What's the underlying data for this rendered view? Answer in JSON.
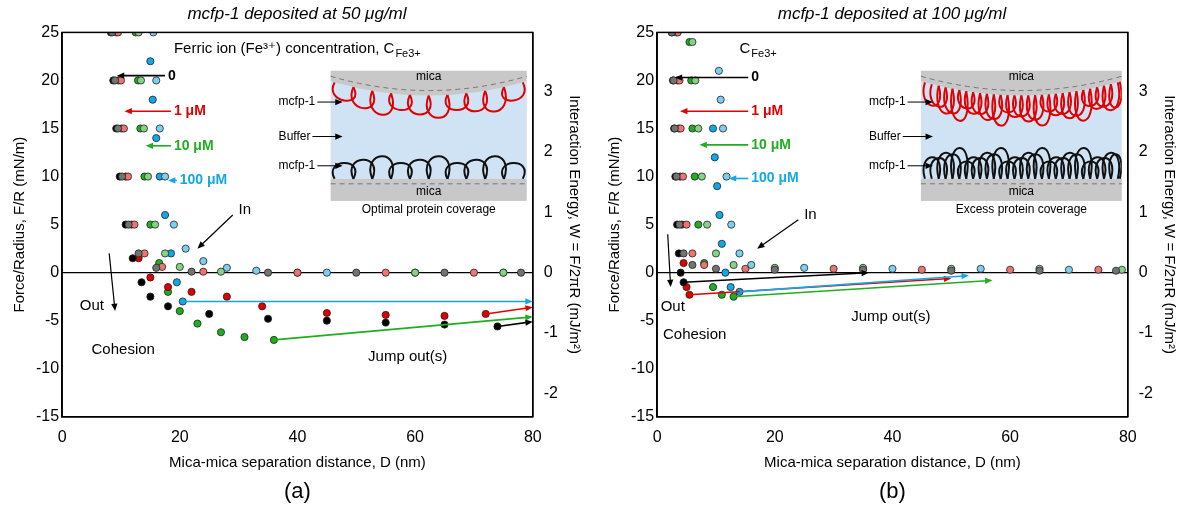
{
  "chart_data": [
    {
      "type": "scatter",
      "title": "mcfp-1 deposited at 50 μg/ml",
      "panel_label": "(a)",
      "x_label": "Mica-mica separation distance, D (nm)",
      "y_label": "Force/Radius, F/R (mN/m)",
      "y2_label": "Interaction Energy, W = F/2πR (mJ/m²)",
      "xlim": [
        0,
        80
      ],
      "xticks": [
        0,
        20,
        40,
        60,
        80
      ],
      "ylim": [
        -15,
        25
      ],
      "yticks": [
        -15,
        -10,
        -5,
        0,
        5,
        10,
        15,
        20,
        25
      ],
      "y2lim": [
        -2.387,
        3.979
      ],
      "y2ticks": [
        -2,
        -1,
        0,
        1,
        2,
        3
      ],
      "grid": false,
      "marker": "circle",
      "series": [
        {
          "name": "0",
          "color": "#000000",
          "approach": {
            "x": [
              8.5,
              9,
              9.5,
              10.2,
              11.3,
              13,
              16,
              22,
              35,
              50,
              65,
              78
            ],
            "values": [
              25,
              20,
              15,
              10,
              5,
              2,
              0.5,
              0.1,
              0,
              0,
              0,
              0
            ]
          },
          "separation": {
            "x": [
              8.3,
              8.7,
              9.2,
              9.8,
              10.8,
              12,
              13.5,
              15,
              18,
              25,
              35,
              45,
              55,
              65,
              74
            ],
            "values": [
              25,
              20,
              15,
              10,
              5,
              1.5,
              -1,
              -2.5,
              -3.5,
              -4.3,
              -4.8,
              -5,
              -5.2,
              -5.4,
              -5.6
            ]
          },
          "jump": [
            [
              74,
              -5.6
            ],
            [
              80,
              -5.1
            ]
          ],
          "label_at": [
            18,
            20.5
          ],
          "arrow_to": [
            9.3,
            20.5
          ]
        },
        {
          "name": "1 μM",
          "color": "#e00000",
          "approach": {
            "x": [
              9.5,
              10,
              10.5,
              11.2,
              12.3,
              14,
              17,
              24,
              40,
              55,
              70
            ],
            "values": [
              25,
              20,
              15,
              10,
              5,
              2,
              0.6,
              0.1,
              0,
              0,
              0
            ]
          },
          "separation": {
            "x": [
              9.2,
              9.6,
              10.1,
              10.8,
              11.8,
              13,
              15,
              18,
              22,
              28,
              34,
              45,
              55,
              65,
              72
            ],
            "values": [
              25,
              20,
              15,
              10,
              5,
              1.5,
              -0.5,
              -1.5,
              -2,
              -2.5,
              -3.5,
              -4.2,
              -4.4,
              -4.5,
              -4.3
            ]
          },
          "jump": [
            [
              72,
              -4.3
            ],
            [
              80,
              -3.6
            ]
          ],
          "label_at": [
            19,
            16.8
          ],
          "arrow_to": [
            10.6,
            16.8
          ]
        },
        {
          "name": "10 μM",
          "color": "#1fae1f",
          "approach": {
            "x": [
              13,
              13.4,
              13.9,
              14.6,
              15.8,
              17.5,
              20,
              27,
              40,
              60,
              75
            ],
            "values": [
              25,
              20,
              15,
              10,
              5,
              2,
              0.6,
              0.1,
              0,
              0,
              0
            ]
          },
          "separation": {
            "x": [
              12.5,
              12.9,
              13.3,
              14,
              15,
              16.5,
              18,
              20,
              23,
              27,
              31,
              36
            ],
            "values": [
              25,
              20,
              15,
              10,
              5,
              1,
              -2,
              -4,
              -5.3,
              -6.2,
              -6.7,
              -7
            ]
          },
          "jump": [
            [
              36,
              -7
            ],
            [
              80,
              -4.6
            ]
          ],
          "label_at": [
            19,
            13.2
          ],
          "arrow_to": [
            14.2,
            13.2
          ]
        },
        {
          "name": "100 μM",
          "color": "#12a8e8",
          "approach": {
            "x": [
              15.5,
              16,
              16.6,
              17.5,
              19,
              21,
              24,
              28,
              33,
              45,
              60,
              75
            ],
            "values": [
              25,
              20,
              15,
              10,
              5,
              2.5,
              1.2,
              0.5,
              0.2,
              0,
              0,
              0
            ]
          },
          "separation": {
            "x": [
              15,
              15.4,
              16,
              16.6,
              17.5,
              18.5,
              19.5,
              20.5
            ],
            "values": [
              22,
              18,
              14,
              10,
              6,
              2,
              -1,
              -3
            ]
          },
          "jump": [
            [
              20.5,
              -3
            ],
            [
              80,
              -3
            ]
          ],
          "label_at": [
            20,
            9.6
          ],
          "arrow_to": [
            18,
            9.6
          ]
        }
      ],
      "annotations": [
        {
          "text": "Ferric ion (Fe³⁺) concentration, C",
          "subscript": "Fe3+",
          "at": [
            19,
            23.3
          ]
        },
        {
          "text": "Out",
          "at": [
            3,
            -3.5
          ],
          "arrow": [
            [
              8,
              2
            ],
            [
              9,
              -4
            ]
          ]
        },
        {
          "text": "In",
          "at": [
            30,
            6.5
          ],
          "arrow": [
            [
              29,
              6
            ],
            [
              23,
              2.5
            ]
          ]
        },
        {
          "text": "Cohesion",
          "at": [
            5,
            -8
          ]
        },
        {
          "text": "Jump out(s)",
          "at": [
            52,
            -8.8
          ]
        }
      ],
      "inset": {
        "labels": [
          "mica",
          "mcfp-1",
          "Buffer",
          "mcfp-1",
          "mica"
        ],
        "caption": "Optimal protein coverage"
      }
    },
    {
      "type": "scatter",
      "title": "mcfp-1 deposited at 100 μg/ml",
      "panel_label": "(b)",
      "x_label": "Mica-mica separation distance, D (nm)",
      "y_label": "Force/Radius, F/R (mN/m)",
      "y2_label": "Interaction Energy, W = F/2πR (mJ/m²)",
      "xlim": [
        0,
        80
      ],
      "xticks": [
        0,
        20,
        40,
        60,
        80
      ],
      "ylim": [
        -15,
        25
      ],
      "yticks": [
        -15,
        -10,
        -5,
        0,
        5,
        10,
        15,
        20,
        25
      ],
      "y2lim": [
        -2.387,
        3.979
      ],
      "y2ticks": [
        -2,
        -1,
        0,
        1,
        2,
        3
      ],
      "grid": false,
      "marker": "circle",
      "series": [
        {
          "name": "0",
          "color": "#000000",
          "approach": {
            "x": [
              2.5,
              2.8,
              3,
              3.3,
              3.8,
              4.5,
              6,
              10,
              20,
              35,
              50,
              65,
              78
            ],
            "values": [
              25,
              20,
              15,
              10,
              5,
              2,
              0.8,
              0.4,
              0.3,
              0.3,
              0.2,
              0.2,
              0.2
            ]
          },
          "separation": {
            "x": [
              2.5,
              2.7,
              2.9,
              3.1,
              3.4,
              3.7,
              4,
              4.5
            ],
            "values": [
              25,
              20,
              15,
              10,
              5,
              2,
              0,
              -1
            ]
          },
          "jump": [
            [
              4.5,
              -1
            ],
            [
              36,
              0
            ]
          ],
          "label_at": [
            16,
            20.3
          ],
          "arrow_to": [
            3,
            20.3
          ]
        },
        {
          "name": "1 μM",
          "color": "#e00000",
          "approach": {
            "x": [
              3.5,
              3.8,
              4,
              4.4,
              5,
              6,
              8,
              15,
              30,
              45,
              60,
              75
            ],
            "values": [
              25,
              20,
              15,
              10,
              5,
              2,
              0.8,
              0.4,
              0.4,
              0.3,
              0.3,
              0.3
            ]
          },
          "separation": {
            "x": [
              3.3,
              3.5,
              3.7,
              3.9,
              4.2,
              4.5,
              5,
              5.5
            ],
            "values": [
              25,
              20,
              15,
              10,
              5,
              1,
              -1.5,
              -2.3
            ]
          },
          "jump": [
            [
              5.5,
              -2.3
            ],
            [
              50,
              -0.6
            ]
          ],
          "label_at": [
            16,
            16.8
          ],
          "arrow_to": [
            3.9,
            16.8
          ]
        },
        {
          "name": "10 μM",
          "color": "#1fae1f",
          "approach": {
            "x": [
              6,
              6.5,
              7,
              7.6,
              8.5,
              10,
              13,
              20,
              35,
              50,
              65,
              79
            ],
            "values": [
              24,
              20,
              15,
              10,
              5,
              2,
              0.8,
              0.5,
              0.5,
              0.4,
              0.4,
              0.3
            ]
          },
          "separation": {
            "x": [
              5.5,
              5.8,
              6,
              6.4,
              7,
              8,
              9.5,
              11,
              13
            ],
            "values": [
              24,
              20,
              15,
              10,
              5,
              1,
              -1.5,
              -2.3,
              -2.5
            ]
          },
          "jump": [
            [
              13,
              -2.5
            ],
            [
              57,
              -0.8
            ]
          ],
          "label_at": [
            16,
            13.3
          ],
          "arrow_to": [
            7.2,
            13.3
          ]
        },
        {
          "name": "100 μM",
          "color": "#12a8e8",
          "approach": {
            "x": [
              10.5,
              10.8,
              11.2,
              11.8,
              12.6,
              14,
              16,
              25,
              40,
              55,
              70
            ],
            "values": [
              21,
              18,
              15,
              10,
              5,
              2,
              0.8,
              0.5,
              0.4,
              0.4,
              0.3
            ]
          },
          "separation": {
            "x": [
              9.5,
              9.8,
              10.2,
              10.6,
              11,
              11.6,
              12.5,
              14
            ],
            "values": [
              15,
              12,
              9,
              6,
              3,
              0,
              -1.5,
              -2
            ]
          },
          "jump": [
            [
              14,
              -2
            ],
            [
              53,
              -0.3
            ]
          ],
          "label_at": [
            16,
            9.8
          ],
          "arrow_to": [
            12.2,
            9.8
          ]
        }
      ],
      "annotations": [
        {
          "text": "C",
          "subscript": "Fe3+",
          "at": [
            14,
            23.3
          ]
        },
        {
          "text": "Out",
          "at": [
            0.6,
            -3.6
          ],
          "arrow": [
            [
              1.8,
              4
            ],
            [
              2.3,
              -1.5
            ]
          ]
        },
        {
          "text": "In",
          "at": [
            25,
            6
          ],
          "arrow": [
            [
              24,
              5.5
            ],
            [
              17,
              2.5
            ]
          ]
        },
        {
          "text": "Cohesion",
          "at": [
            1,
            -6.5
          ]
        },
        {
          "text": "Jump out(s)",
          "at": [
            33,
            -4.6
          ]
        }
      ],
      "inset": {
        "labels": [
          "mica",
          "mcfp-1",
          "Buffer",
          "mcfp-1",
          "mica"
        ],
        "caption": "Excess protein coverage"
      }
    }
  ]
}
